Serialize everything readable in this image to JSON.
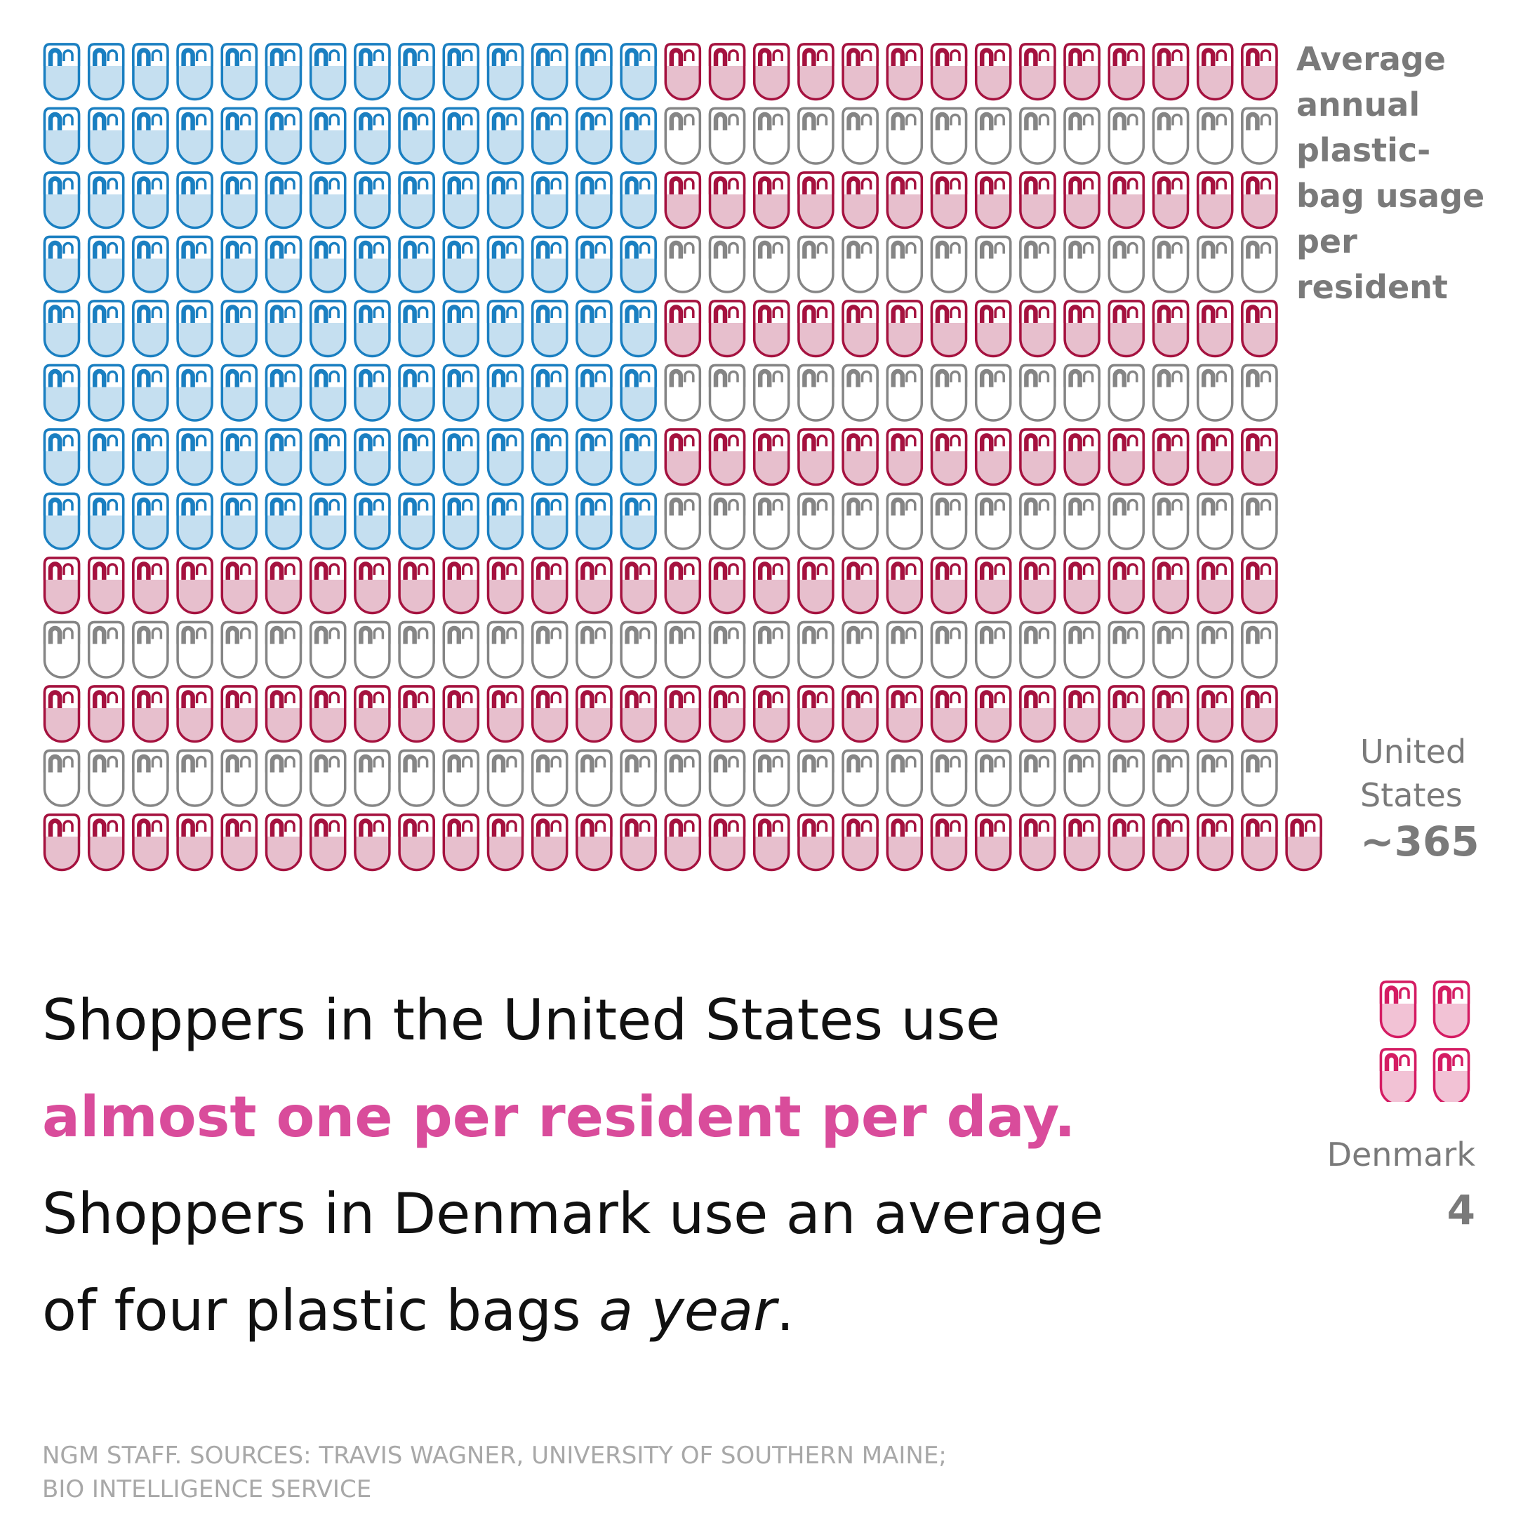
{
  "chart_data": {
    "type": "pictogram",
    "title": "Average annual plastic-bag usage per resident",
    "unit": "plastic bags per resident per year",
    "categories": [
      "United States",
      "Denmark"
    ],
    "values": [
      365,
      4
    ],
    "value_labels": [
      "~365",
      "4"
    ],
    "colors": {
      "blue_stroke": "#1a7fc1",
      "blue_fill": "#c5dff0",
      "red_stroke": "#a5123f",
      "red_fill": "#e7bfcd",
      "gray_stroke": "#858585",
      "gray_fill": "#ffffff",
      "denmark_stroke": "#d41c63",
      "denmark_fill": "#f2c2d5"
    }
  },
  "legend": {
    "lines": [
      "Average",
      "annual",
      "plastic-",
      "bag usage",
      "per resident"
    ]
  },
  "us": {
    "name_line1": "United",
    "name_line2": "States",
    "value": "~365"
  },
  "denmark": {
    "name": "Denmark",
    "value": "4"
  },
  "headline": {
    "line1": "Shoppers in the United States use",
    "line2": "almost one per resident per day.",
    "line3": "Shoppers in Denmark use an average",
    "line4_before": "of four plastic bags ",
    "line4_italic": "a year",
    "line4_after": "."
  },
  "credit": {
    "line1": "NGM STAFF. SOURCES: TRAVIS WAGNER, UNIVERSITY OF SOUTHERN MAINE;",
    "line2": "BIO INTELLIGENCE SERVICE"
  }
}
